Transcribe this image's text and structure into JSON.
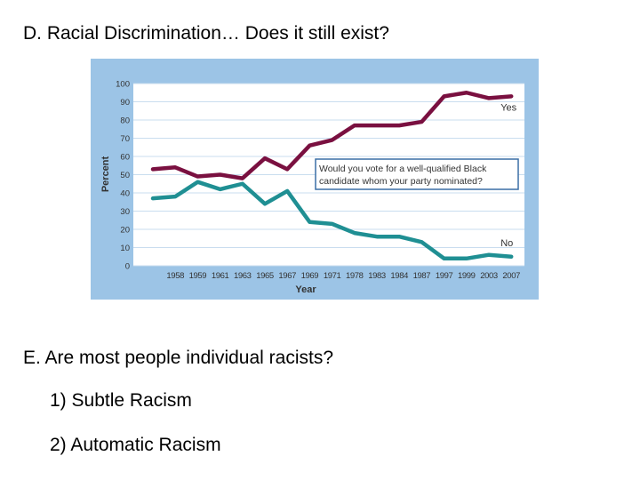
{
  "slide": {
    "heading_d": "D. Racial Discrimination… Does it still exist?",
    "heading_e": "E. Are most people individual racists?",
    "items": [
      "1) Subtle Racism",
      "2) Automatic Racism"
    ]
  },
  "chart_data": {
    "type": "line",
    "title": "",
    "xlabel": "Year",
    "ylabel": "Percent",
    "ylim": [
      0,
      100
    ],
    "y_ticks": [
      0,
      10,
      20,
      30,
      40,
      50,
      60,
      70,
      80,
      90,
      100
    ],
    "categories": [
      "",
      "1958",
      "1959",
      "1961",
      "1963",
      "1965",
      "1967",
      "1969",
      "1971",
      "1978",
      "1983",
      "1984",
      "1987",
      "1997",
      "1999",
      "2003",
      "2007"
    ],
    "series": [
      {
        "name": "Yes",
        "color": "#7a1040",
        "values": [
          53,
          54,
          49,
          50,
          48,
          59,
          53,
          66,
          69,
          77,
          77,
          77,
          79,
          93,
          95,
          92,
          93
        ]
      },
      {
        "name": "No",
        "color": "#1f8f93",
        "values": [
          37,
          38,
          46,
          42,
          45,
          34,
          41,
          24,
          23,
          18,
          16,
          16,
          13,
          4,
          4,
          6,
          5
        ]
      }
    ],
    "annotation": "Would you vote for a well-qualified Black candidate whom your party nominated?",
    "grid": true,
    "colors": {
      "panel": "#9cc4e6",
      "plot": "#ffffff",
      "grid": "#c9ddef",
      "box_border": "#3a6ea5"
    }
  }
}
